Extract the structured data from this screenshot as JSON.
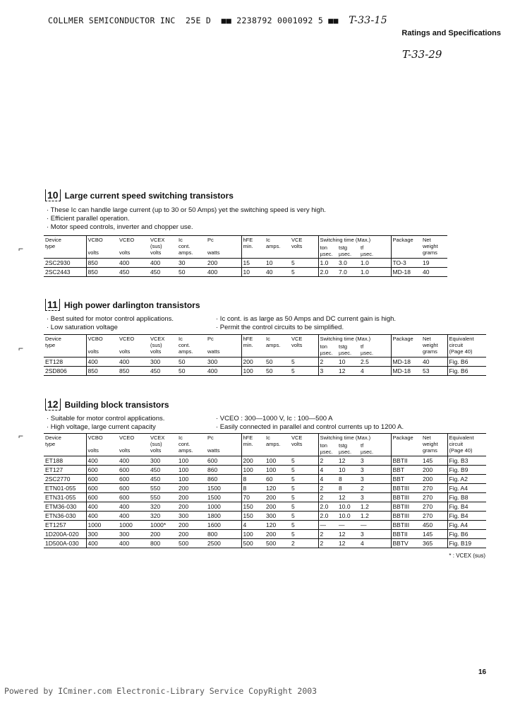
{
  "header": {
    "line": "COLLMER SEMICONDUCTOR INC  25E D  ■■ 2238792 0001092 5 ■■",
    "handwritten_1": "T-33-15",
    "handwritten_2": "T-33-29",
    "section": "Ratings and Specifications"
  },
  "columns": {
    "device": "Device\ntype",
    "vcbo": "VCBO\n\nvolts",
    "vceo": "VCEO\n\nvolts",
    "vcex": "VCEX\n(sus)\nvolts",
    "ic": "Ic\ncont.\namps.",
    "pc": "Pc\n\nwatts",
    "hfe": "hFE\nmin.",
    "ic2": "Ic\namps.",
    "vce": "VCE\nvolts",
    "switching": "Switching time (Max.)",
    "ton": "ton\nµsec.",
    "tstg": "tstg\nµsec.",
    "tf": "tf\nµsec.",
    "package": "Package",
    "weight": "Net\nweight\ngrams",
    "equiv": "Equivalent\ncircuit\n(Page 40)"
  },
  "sections": [
    {
      "number": "10",
      "title": "Large current speed switching transistors",
      "bullets_left": [
        "· These Ic can handle large current (up to 30 or 50 Amps) yet the switching speed is very high.",
        "· Efficient parallel operation.",
        "· Motor speed controls, inverter and chopper use."
      ],
      "bullets_right": [],
      "has_equiv": false,
      "rows": [
        [
          "2SC2930",
          "850",
          "400",
          "400",
          "30",
          "200",
          "15",
          "10",
          "5",
          "1.0",
          "3.0",
          "1.0",
          "TO-3",
          "19"
        ],
        [
          "2SC2443",
          "850",
          "450",
          "450",
          "50",
          "400",
          "10",
          "40",
          "5",
          "2.0",
          "7.0",
          "1.0",
          "MD-18",
          "40"
        ]
      ]
    },
    {
      "number": "11",
      "title": "High power darlington transistors",
      "bullets_left": [
        "· Best suited for motor control applications.",
        "· Low saturation voltage"
      ],
      "bullets_right": [
        "· Ic cont. is as large as 50 Amps and DC current gain is high.",
        "· Permit the control circuits to be simplified."
      ],
      "has_equiv": true,
      "rows": [
        [
          "ET128",
          "400",
          "400",
          "300",
          "50",
          "300",
          "200",
          "50",
          "5",
          "2",
          "10",
          "2.5",
          "MD-18",
          "40",
          "Fig. B6"
        ],
        [
          "2SD806",
          "850",
          "850",
          "450",
          "50",
          "400",
          "100",
          "50",
          "5",
          "3",
          "12",
          "4",
          "MD-18",
          "53",
          "Fig. B6"
        ]
      ]
    },
    {
      "number": "12",
      "title": "Building block transistors",
      "bullets_left": [
        "· Suitable for motor control applications.",
        "· High voltage, large current capacity"
      ],
      "bullets_right": [
        "· VCEO : 300—1000 V, Ic : 100—500 A",
        "· Easily connected in parallel and control currents up to 1200 A."
      ],
      "has_equiv": true,
      "rows": [
        [
          "ET188",
          "400",
          "400",
          "300",
          "100",
          "600",
          "200",
          "100",
          "5",
          "2",
          "12",
          "3",
          "BBTII",
          "145",
          "Fig. B3"
        ],
        [
          "ET127",
          "600",
          "600",
          "450",
          "100",
          "860",
          "100",
          "100",
          "5",
          "4",
          "10",
          "3",
          "BBT",
          "200",
          "Fig. B9"
        ],
        [
          "2SC2770",
          "600",
          "600",
          "450",
          "100",
          "860",
          "8",
          "60",
          "5",
          "4",
          "8",
          "3",
          "BBT",
          "200",
          "Fig. A2"
        ],
        [
          "ETN01-055",
          "600",
          "600",
          "550",
          "200",
          "1500",
          "8",
          "120",
          "5",
          "2",
          "8",
          "2",
          "BBTIII",
          "270",
          "Fig. A4"
        ],
        [
          "ETN31-055",
          "600",
          "600",
          "550",
          "200",
          "1500",
          "70",
          "200",
          "5",
          "2",
          "12",
          "3",
          "BBTIII",
          "270",
          "Fig. B8"
        ],
        [
          "ETM36-030",
          "400",
          "400",
          "320",
          "200",
          "1000",
          "150",
          "200",
          "5",
          "2.0",
          "10.0",
          "1.2",
          "BBTIII",
          "270",
          "Fig. B4"
        ],
        [
          "ETN36-030",
          "400",
          "400",
          "320",
          "300",
          "1800",
          "150",
          "300",
          "5",
          "2.0",
          "10.0",
          "1.2",
          "BBTIII",
          "270",
          "Fig. B4"
        ],
        [
          "ET1257",
          "1000",
          "1000",
          "1000*",
          "200",
          "1600",
          "4",
          "120",
          "5",
          "—",
          "—",
          "—",
          "BBTIII",
          "450",
          "Fig. A4"
        ],
        [
          "1D200A-020",
          "300",
          "300",
          "200",
          "200",
          "800",
          "100",
          "200",
          "5",
          "2",
          "12",
          "3",
          "BBTII",
          "145",
          "Fig. B6"
        ],
        [
          "1D500A-030",
          "400",
          "400",
          "800",
          "500",
          "2500",
          "500",
          "500",
          "2",
          "2",
          "12",
          "4",
          "BBTV",
          "365",
          "Fig. B19"
        ]
      ],
      "note": "* : VCEX (sus)"
    }
  ],
  "page_number": "16",
  "footer": "Powered by ICminer.com Electronic-Library Service CopyRight 2003"
}
